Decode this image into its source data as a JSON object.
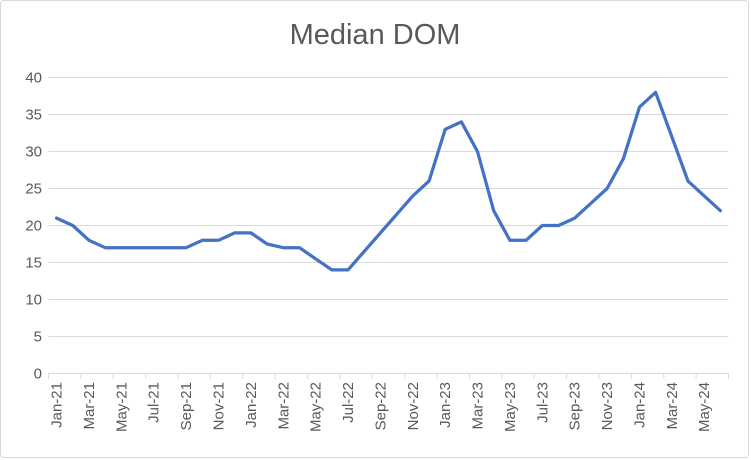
{
  "chart": {
    "title": "Median DOM"
  },
  "colors": {
    "line": "#4472C4",
    "gridline": "#D9D9D9",
    "axis_line": "#D9D9D9",
    "tick": "#D9D9D9",
    "axis_text": "#595959",
    "title_text": "#595959",
    "background": "#FFFFFF",
    "border": "#D9D9D9"
  },
  "chart_data": {
    "type": "line",
    "title": "Median DOM",
    "xlabel": "",
    "ylabel": "",
    "legend": "none",
    "grid": "horizontal",
    "ylim": [
      0,
      40
    ],
    "yticks": [
      0,
      5,
      10,
      15,
      20,
      25,
      30,
      35,
      40
    ],
    "x_label_rotation": -90,
    "x": [
      "Jan-21",
      "Feb-21",
      "Mar-21",
      "Apr-21",
      "May-21",
      "Jun-21",
      "Jul-21",
      "Aug-21",
      "Sep-21",
      "Oct-21",
      "Nov-21",
      "Dec-21",
      "Jan-22",
      "Feb-22",
      "Mar-22",
      "Apr-22",
      "May-22",
      "Jun-22",
      "Jul-22",
      "Aug-22",
      "Sep-22",
      "Oct-22",
      "Nov-22",
      "Dec-22",
      "Jan-23",
      "Feb-23",
      "Mar-23",
      "Apr-23",
      "May-23",
      "Jun-23",
      "Jul-23",
      "Aug-23",
      "Sep-23",
      "Oct-23",
      "Nov-23",
      "Dec-23",
      "Jan-24",
      "Feb-24",
      "Mar-24",
      "Apr-24",
      "May-24",
      "Jun-24"
    ],
    "values": [
      21,
      20,
      18,
      17,
      17,
      17,
      17,
      17,
      17,
      18,
      18,
      19,
      19,
      17.5,
      17,
      17,
      15.5,
      14,
      14,
      16.5,
      19,
      21.5,
      24,
      26,
      33,
      34,
      30,
      22,
      18,
      18,
      20,
      20,
      21,
      23,
      25,
      29,
      36,
      38,
      32,
      26,
      24,
      22
    ],
    "xticks_shown": [
      "Jan-21",
      "Mar-21",
      "May-21",
      "Jul-21",
      "Sep-21",
      "Nov-21",
      "Jan-22",
      "Mar-22",
      "May-22",
      "Jul-22",
      "Sep-22",
      "Nov-22",
      "Jan-23",
      "Mar-23",
      "May-23",
      "Jul-23",
      "Sep-23",
      "Nov-23",
      "Jan-24",
      "Mar-24",
      "May-24"
    ]
  }
}
